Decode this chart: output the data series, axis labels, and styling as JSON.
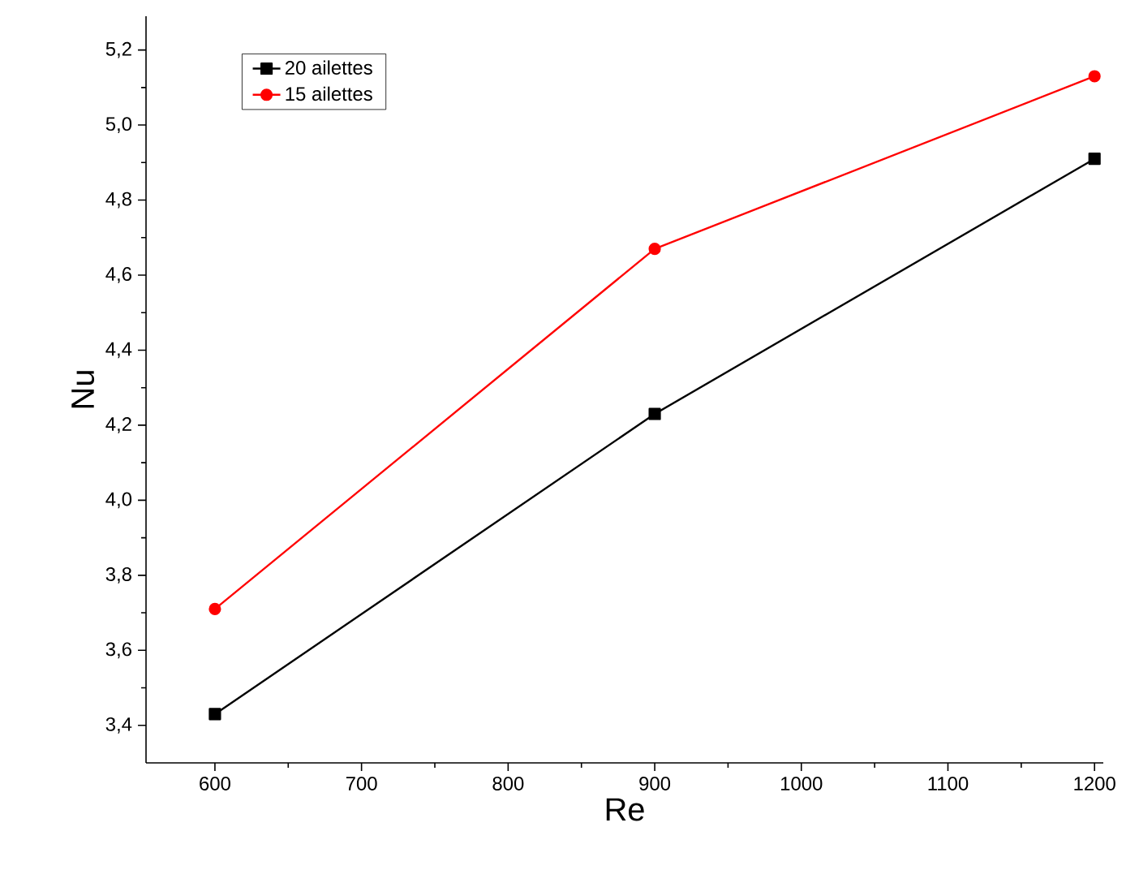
{
  "chart_data": {
    "type": "line",
    "xlabel": "Re",
    "ylabel": "Nu",
    "x": [
      600,
      900,
      1200
    ],
    "series": [
      {
        "name": "20 ailettes",
        "color": "#000000",
        "marker": "square",
        "values": [
          3.43,
          4.23,
          4.91
        ]
      },
      {
        "name": "15 ailettes",
        "color": "#ff0000",
        "marker": "circle",
        "values": [
          3.71,
          4.67,
          5.13
        ]
      }
    ],
    "xlim": [
      553,
      1206
    ],
    "ylim": [
      3.3,
      5.29
    ],
    "xticks": [
      600,
      700,
      800,
      900,
      1000,
      1100,
      1200
    ],
    "yticks": [
      {
        "value": 3.4,
        "label": "3,4"
      },
      {
        "value": 3.6,
        "label": "3,6"
      },
      {
        "value": 3.8,
        "label": "3,8"
      },
      {
        "value": 4.0,
        "label": "4,0"
      },
      {
        "value": 4.2,
        "label": "4,2"
      },
      {
        "value": 4.4,
        "label": "4,4"
      },
      {
        "value": 4.6,
        "label": "4,6"
      },
      {
        "value": 4.8,
        "label": "4,8"
      },
      {
        "value": 5.0,
        "label": "5,0"
      },
      {
        "value": 5.2,
        "label": "5,2"
      }
    ],
    "legend": "top left",
    "grid": false,
    "line_style": "solid"
  }
}
